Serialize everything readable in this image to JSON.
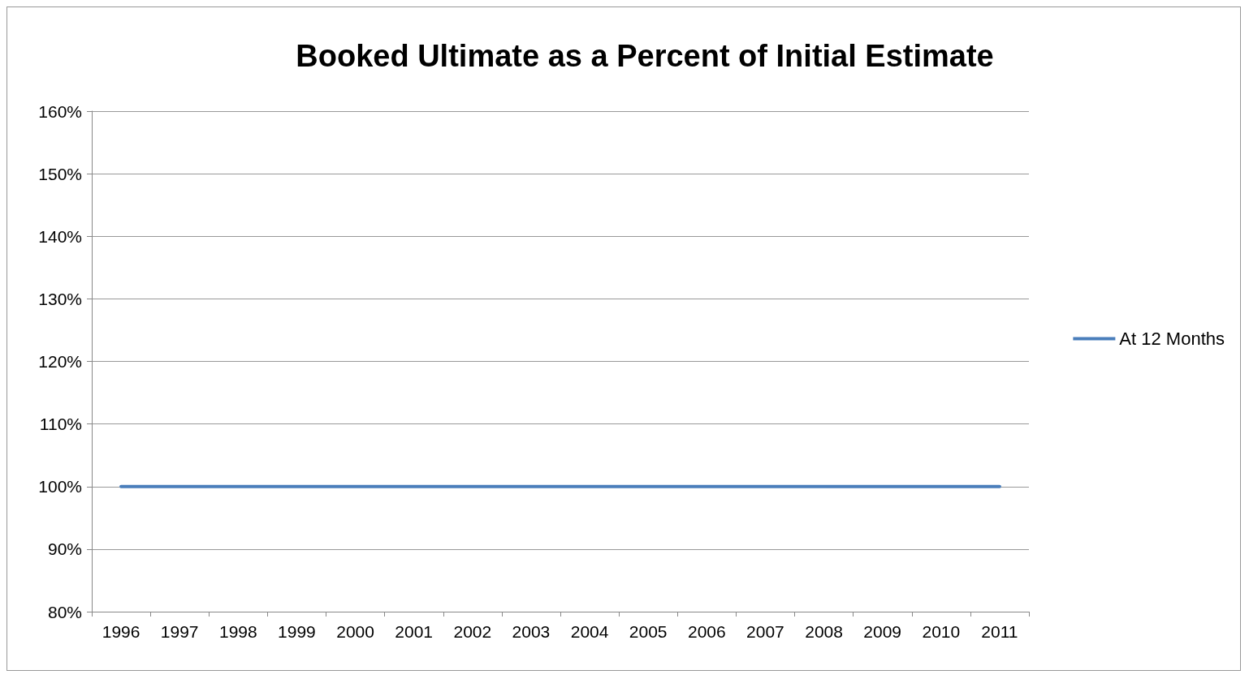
{
  "chart_data": {
    "type": "line",
    "title": "Booked Ultimate as a Percent of Initial Estimate",
    "categories": [
      "1996",
      "1997",
      "1998",
      "1999",
      "2000",
      "2001",
      "2002",
      "2003",
      "2004",
      "2005",
      "2006",
      "2007",
      "2008",
      "2009",
      "2010",
      "2011"
    ],
    "series": [
      {
        "name": "At 12 Months",
        "color": "#4a7ebb",
        "values": [
          100,
          100,
          100,
          100,
          100,
          100,
          100,
          100,
          100,
          100,
          100,
          100,
          100,
          100,
          100,
          100
        ]
      }
    ],
    "ylim": [
      80,
      160
    ],
    "yticks": [
      {
        "value": 80,
        "label": "80%"
      },
      {
        "value": 90,
        "label": "90%"
      },
      {
        "value": 100,
        "label": "100%"
      },
      {
        "value": 110,
        "label": "110%"
      },
      {
        "value": 120,
        "label": "120%"
      },
      {
        "value": 130,
        "label": "130%"
      },
      {
        "value": 140,
        "label": "140%"
      },
      {
        "value": 150,
        "label": "150%"
      },
      {
        "value": 160,
        "label": "160%"
      }
    ],
    "grid": "y",
    "legend": "right",
    "marker": "none",
    "line_style": "solid"
  }
}
